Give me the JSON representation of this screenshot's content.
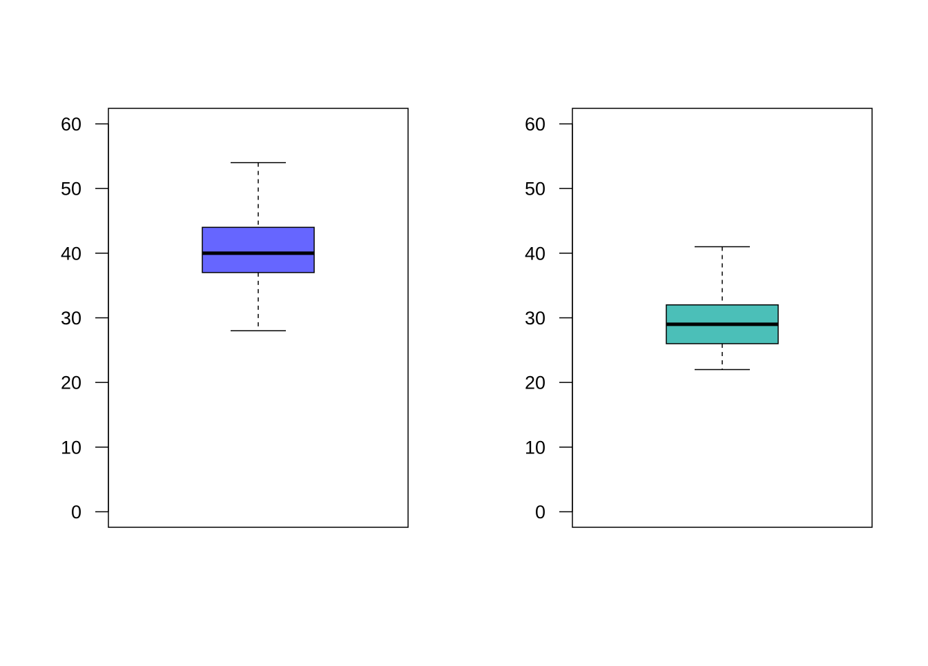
{
  "chart_data": [
    {
      "type": "box",
      "ylim": [
        -2.4,
        62.4
      ],
      "yticks": [
        0,
        10,
        20,
        30,
        40,
        50,
        60
      ],
      "ytick_labels": [
        "0",
        "10",
        "20",
        "30",
        "40",
        "50",
        "60"
      ],
      "grid": false,
      "box": {
        "min": 28,
        "q1": 37,
        "median": 40,
        "q3": 44,
        "max": 54
      },
      "fill_color": "#6666ff"
    },
    {
      "type": "box",
      "ylim": [
        -2.4,
        62.4
      ],
      "yticks": [
        0,
        10,
        20,
        30,
        40,
        50,
        60
      ],
      "ytick_labels": [
        "0",
        "10",
        "20",
        "30",
        "40",
        "50",
        "60"
      ],
      "grid": false,
      "box": {
        "min": 22,
        "q1": 26,
        "median": 29,
        "q3": 32,
        "max": 41
      },
      "fill_color": "#4bbfb8"
    }
  ]
}
